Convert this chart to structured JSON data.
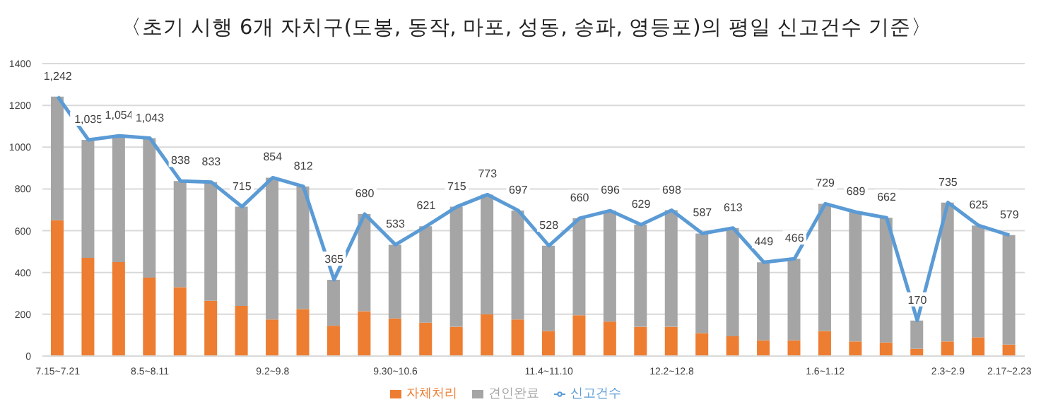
{
  "chart_data": {
    "type": "bar",
    "title": "〈초기 시행 6개 자치구(도봉, 동작, 마포, 성동, 송파, 영등포)의 평일 신고건수 기준〉",
    "categories": [
      "7.15~7.21",
      null,
      null,
      "8.5~8.11",
      null,
      null,
      null,
      "9.2~9.8",
      null,
      null,
      null,
      "9.30~10.6",
      null,
      null,
      null,
      null,
      "11.4~11.10",
      null,
      null,
      null,
      "12.2~12.8",
      null,
      null,
      null,
      null,
      "1.6~1.12",
      null,
      null,
      null,
      "2.3~2.9",
      null,
      "2.17~2.23"
    ],
    "stacked": true,
    "ylim": [
      0,
      1400
    ],
    "yticks": [
      0,
      200,
      400,
      600,
      800,
      1000,
      1200,
      1400
    ],
    "grid": "y",
    "legend": "bottom",
    "series": [
      {
        "name": "자체처리",
        "color": "#ed7d31",
        "values": [
          650,
          470,
          450,
          375,
          330,
          265,
          240,
          175,
          225,
          145,
          215,
          180,
          160,
          140,
          200,
          175,
          120,
          195,
          165,
          140,
          140,
          110,
          95,
          75,
          75,
          120,
          70,
          65,
          35,
          70,
          90,
          55
        ]
      },
      {
        "name": "견인완료",
        "color": "#a5a5a5",
        "values": [
          592,
          565,
          604,
          668,
          508,
          568,
          475,
          679,
          587,
          220,
          465,
          353,
          461,
          575,
          573,
          522,
          408,
          465,
          531,
          489,
          558,
          477,
          518,
          374,
          391,
          609,
          619,
          597,
          135,
          665,
          535,
          524
        ]
      },
      {
        "name": "신고건수",
        "type": "line",
        "color": "#5b9bd5",
        "marker": "none",
        "values": [
          1242,
          1035,
          1054,
          1043,
          838,
          833,
          715,
          854,
          812,
          365,
          680,
          533,
          621,
          715,
          773,
          697,
          528,
          660,
          696,
          629,
          698,
          587,
          613,
          449,
          466,
          729,
          689,
          662,
          170,
          735,
          625,
          579
        ],
        "value_labels": [
          "1,242",
          "1,035",
          "1,054",
          "1,043",
          "838",
          "833",
          "715",
          "854",
          "812",
          "365",
          "680",
          "533",
          "621",
          "715",
          "773",
          "697",
          "528",
          "660",
          "696",
          "629",
          "698",
          "587",
          "613",
          "449",
          "466",
          "729",
          "689",
          "662",
          "170",
          "735",
          "625",
          "579"
        ]
      }
    ]
  }
}
